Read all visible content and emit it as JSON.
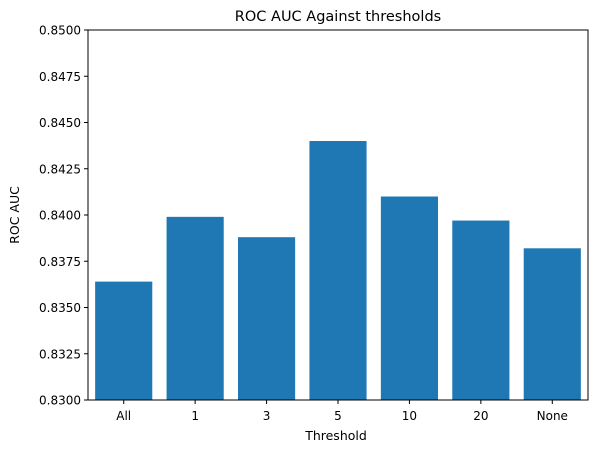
{
  "chart_data": {
    "type": "bar",
    "title": "ROC AUC Against thresholds",
    "xlabel": "Threshold",
    "ylabel": "ROC AUC",
    "categories": [
      "All",
      "1",
      "3",
      "5",
      "10",
      "20",
      "None"
    ],
    "values": [
      0.8364,
      0.8399,
      0.8388,
      0.844,
      0.841,
      0.8397,
      0.8382
    ],
    "ylim": [
      0.83,
      0.85
    ],
    "yticks": [
      "0.8300",
      "0.8325",
      "0.8350",
      "0.8375",
      "0.8400",
      "0.8425",
      "0.8450",
      "0.8475",
      "0.8500"
    ],
    "grid": false,
    "legend": "none",
    "bar_color": "#1f77b4"
  }
}
